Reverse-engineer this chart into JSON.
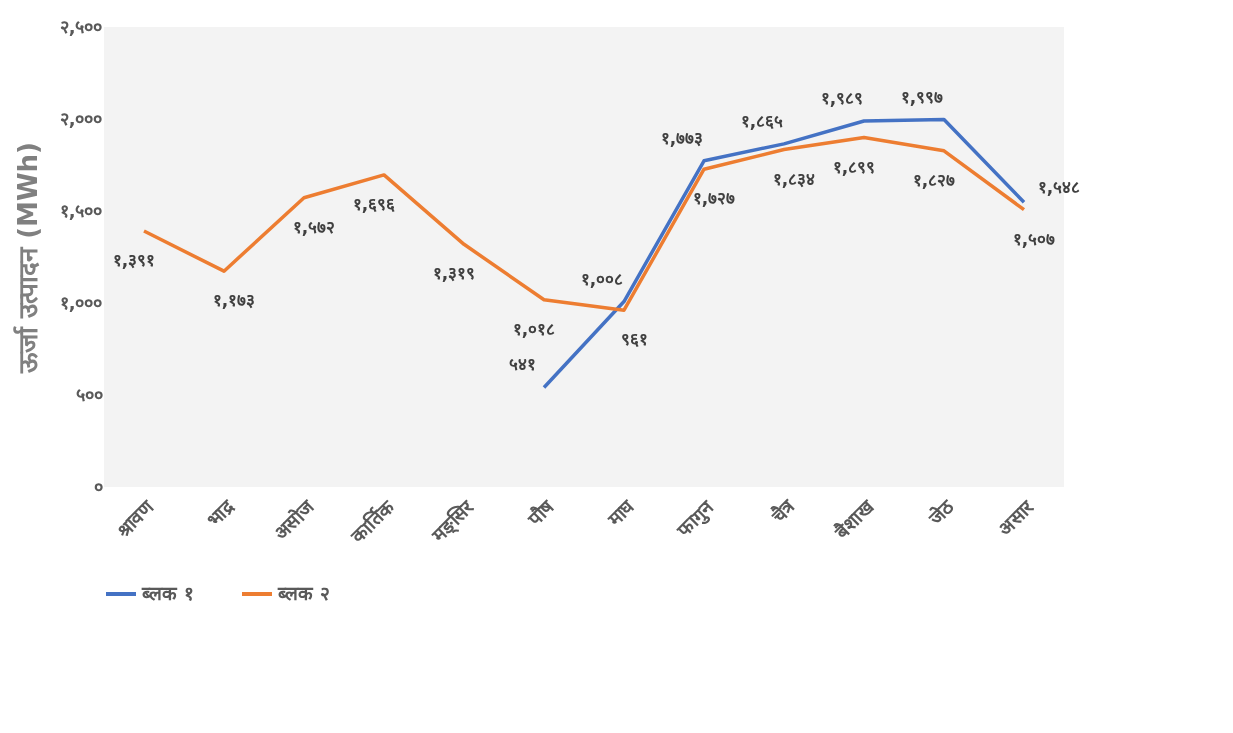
{
  "chart_data": {
    "type": "line",
    "ylabel": "ऊर्जा उत्पादन (MWh)",
    "categories": [
      "श्रावण",
      "भाद्र",
      "असोज",
      "कार्तिक",
      "मङ्सिर",
      "पौष",
      "माघ",
      "फागुन",
      "चैत्र",
      "बैशाख",
      "जेठ",
      "असार"
    ],
    "series": [
      {
        "name": "ब्लक १",
        "color": "#4472c4",
        "values": [
          null,
          null,
          null,
          null,
          null,
          541,
          1008,
          1773,
          1865,
          1989,
          1997,
          1548
        ],
        "value_labels": [
          null,
          null,
          null,
          null,
          null,
          "५४१",
          "१,००८",
          "१,७७३",
          "१,८६५",
          "१,९८९",
          "१,९९७",
          "१,५४८"
        ]
      },
      {
        "name": "ब्लक २",
        "color": "#ed7d31",
        "values": [
          1391,
          1173,
          1572,
          1696,
          1319,
          1018,
          961,
          1727,
          1834,
          1899,
          1827,
          1507
        ],
        "value_labels": [
          "१,३९१",
          "१,१७३",
          "१,५७२",
          "१,६९६",
          "१,३१९",
          "१,०१८",
          "९६१",
          "१,७२७",
          "१,८३४",
          "१,८९९",
          "१,८२७",
          "१,५०७"
        ]
      }
    ],
    "ylim": [
      0,
      2500
    ],
    "yticks": [
      {
        "value": 0,
        "label": "०"
      },
      {
        "value": 500,
        "label": "५००"
      },
      {
        "value": 1000,
        "label": "१,०००"
      },
      {
        "value": 1500,
        "label": "१,५००"
      },
      {
        "value": 2000,
        "label": "२,०००"
      },
      {
        "value": 2500,
        "label": "२,५००"
      }
    ],
    "grid": false,
    "legend": "bottom",
    "marker": "none",
    "line_style": "solid"
  }
}
